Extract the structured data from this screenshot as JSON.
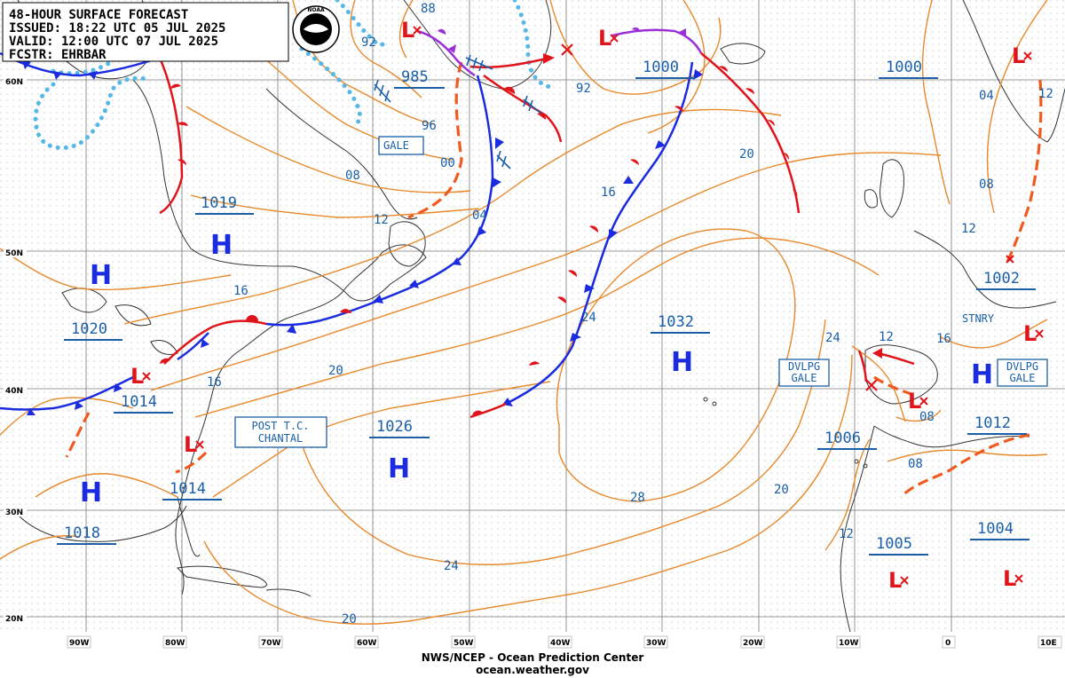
{
  "header": {
    "line1": "48-HOUR SURFACE FORECAST",
    "line2": "ISSUED: 18:22 UTC 05 JUL 2025",
    "line3": "VALID:  12:00 UTC 07 JUL 2025",
    "line4": "FCSTR: EHRBAR",
    "logo_text": "NOAA"
  },
  "footer": {
    "line1": "NWS/NCEP - Ocean Prediction Center",
    "line2": "ocean.weather.gov"
  },
  "lat_labels": [
    "60N",
    "50N",
    "40N",
    "30N",
    "20N"
  ],
  "lon_labels": [
    "90W",
    "80W",
    "70W",
    "60W",
    "50W",
    "40W",
    "30W",
    "20W",
    "10W",
    "0",
    "10E"
  ],
  "pressure_centers": [
    {
      "type": "H",
      "value": "1019"
    },
    {
      "type": "H",
      "value": "1020"
    },
    {
      "type": "L",
      "value": "1014"
    },
    {
      "type": "H",
      "value": "1018"
    },
    {
      "type": "L",
      "value": "1014"
    },
    {
      "type": "H",
      "value": "1026"
    },
    {
      "type": "H",
      "value": "1032"
    },
    {
      "type": "L",
      "value": "985"
    },
    {
      "type": "L",
      "value": "1000"
    },
    {
      "type": "L",
      "value": "1000"
    },
    {
      "type": "L",
      "value": "1002"
    },
    {
      "type": "L",
      "value": "1006"
    },
    {
      "type": "H",
      "value": "1012"
    },
    {
      "type": "L",
      "value": "1005"
    },
    {
      "type": "L",
      "value": "1004"
    }
  ],
  "isobar_labels": [
    "88",
    "92",
    "96",
    "00",
    "04",
    "08",
    "12",
    "16",
    "20",
    "24",
    "28",
    "20",
    "24",
    "16",
    "12",
    "08",
    "04",
    "92",
    "16",
    "24",
    "20",
    "08",
    "12",
    "16",
    "20",
    "12",
    "08",
    "12"
  ],
  "boxed_tags": [
    "GALE",
    "POST T.C.\nCHANTAL",
    "DVLPG\nGALE",
    "DVLPG\nGALE"
  ],
  "plain_tags": [
    "STNRY"
  ],
  "colors": {
    "isobar": "#e8882a",
    "cold_front": "#1b2be0",
    "warm_front": "#e0141a",
    "occluded_front": "#9b30d9",
    "ice_edge": "#56b8e6",
    "trough": "#f05a1e",
    "label": "#1a5fa8",
    "coast": "#333333"
  }
}
